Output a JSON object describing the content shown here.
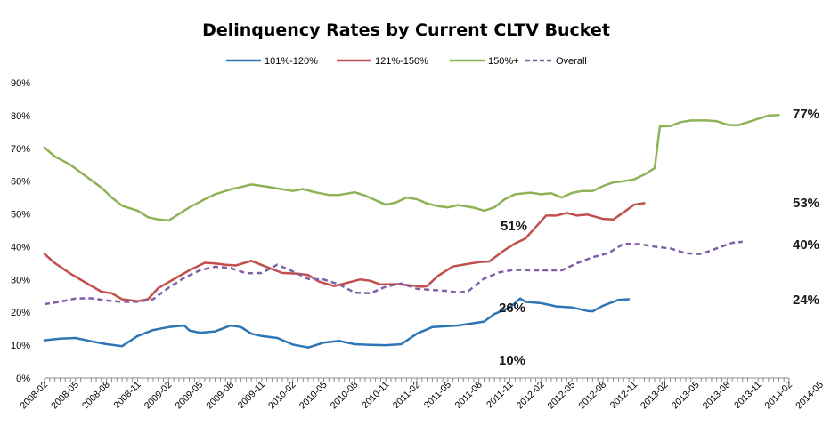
{
  "chart_data": {
    "type": "line",
    "title": "Delinquency Rates by Current CLTV Bucket",
    "xlabel": "",
    "ylabel": "",
    "ylim": [
      0,
      90
    ],
    "yticks": [
      0,
      10,
      20,
      30,
      40,
      50,
      60,
      70,
      80,
      90
    ],
    "ytick_labels": [
      "0%",
      "10%",
      "20%",
      "30%",
      "40%",
      "50%",
      "60%",
      "70%",
      "80%",
      "90%"
    ],
    "x_tick_labels": [
      "2008-02",
      "2008-05",
      "2008-08",
      "2008-11",
      "2009-02",
      "2009-05",
      "2009-08",
      "2009-11",
      "2010-02",
      "2010-05",
      "2010-08",
      "2010-11",
      "2011-02",
      "2011-05",
      "2011-08",
      "2011-11",
      "2012-02",
      "2012-05",
      "2012-08",
      "2012-11",
      "2013-02",
      "2013-05",
      "2013-08",
      "2013-11",
      "2014-02",
      "2014-05"
    ],
    "x_range": [
      "2008-02",
      "2014-07"
    ],
    "grid": false,
    "legend_position": "top",
    "series": [
      {
        "name": "101%-120%",
        "color": "#2e75b6",
        "style": "solid",
        "points": [
          [
            0,
            11.5
          ],
          [
            3,
            12
          ],
          [
            6,
            12.2
          ],
          [
            9,
            11.2
          ],
          [
            12,
            10.3
          ],
          [
            15,
            9.7
          ],
          [
            18,
            12.8
          ],
          [
            21,
            14.6
          ],
          [
            24,
            15.5
          ],
          [
            27,
            16
          ],
          [
            28,
            14.5
          ],
          [
            30,
            13.8
          ],
          [
            33,
            14.2
          ],
          [
            36,
            16
          ],
          [
            38,
            15.5
          ],
          [
            40,
            13.5
          ],
          [
            42,
            12.8
          ],
          [
            45,
            12.2
          ],
          [
            48,
            10.2
          ],
          [
            51,
            9.3
          ],
          [
            54,
            10.8
          ],
          [
            57,
            11.3
          ],
          [
            60,
            10.3
          ],
          [
            63,
            10.1
          ],
          [
            66,
            10
          ],
          [
            69,
            10.3
          ],
          [
            72,
            13.5
          ],
          [
            75,
            15.5
          ],
          [
            78,
            15.8
          ],
          [
            80,
            16
          ],
          [
            83,
            16.7
          ],
          [
            85,
            17.2
          ],
          [
            87,
            19.5
          ],
          [
            90,
            21.5
          ],
          [
            92,
            24.2
          ],
          [
            93,
            23.2
          ],
          [
            96,
            22.8
          ],
          [
            99,
            21.8
          ],
          [
            102,
            21.5
          ],
          [
            105,
            20.4
          ],
          [
            106,
            20.3
          ],
          [
            108,
            22
          ],
          [
            111,
            23.8
          ],
          [
            113,
            24
          ]
        ]
      },
      {
        "name": "121%-150%",
        "color": "#c0504d",
        "style": "solid",
        "points": [
          [
            0,
            37.8
          ],
          [
            2,
            35
          ],
          [
            5,
            31.8
          ],
          [
            8,
            29
          ],
          [
            11,
            26.3
          ],
          [
            13,
            25.8
          ],
          [
            15,
            24
          ],
          [
            18,
            23.4
          ],
          [
            20,
            24
          ],
          [
            22,
            27.4
          ],
          [
            25,
            30.1
          ],
          [
            28,
            32.8
          ],
          [
            31,
            35.1
          ],
          [
            33,
            34.9
          ],
          [
            35,
            34.5
          ],
          [
            37,
            34.3
          ],
          [
            40,
            35.7
          ],
          [
            43,
            33.8
          ],
          [
            46,
            32
          ],
          [
            49,
            31.8
          ],
          [
            51,
            31.4
          ],
          [
            53,
            29.4
          ],
          [
            56,
            28
          ],
          [
            58,
            28.8
          ],
          [
            61,
            30
          ],
          [
            63,
            29.6
          ],
          [
            65,
            28.5
          ],
          [
            68,
            28.6
          ],
          [
            71,
            28.2
          ],
          [
            73,
            27.8
          ],
          [
            74,
            28
          ],
          [
            76,
            31
          ],
          [
            79,
            34
          ],
          [
            82,
            34.8
          ],
          [
            84,
            35.3
          ],
          [
            86,
            35.5
          ],
          [
            89,
            39
          ],
          [
            91,
            41
          ],
          [
            93,
            42.5
          ],
          [
            95,
            46
          ],
          [
            97,
            49.5
          ],
          [
            99,
            49.5
          ],
          [
            101,
            50.3
          ],
          [
            103,
            49.5
          ],
          [
            105,
            49.8
          ],
          [
            108,
            48.5
          ],
          [
            110,
            48.3
          ],
          [
            112,
            50.5
          ],
          [
            114,
            52.8
          ],
          [
            116,
            53.3
          ]
        ]
      },
      {
        "name": "150%+",
        "color": "#8db356",
        "style": "solid",
        "points": [
          [
            0,
            70.2
          ],
          [
            2,
            67.5
          ],
          [
            5,
            65
          ],
          [
            8,
            61.5
          ],
          [
            11,
            58
          ],
          [
            13,
            55
          ],
          [
            15,
            52.5
          ],
          [
            18,
            51
          ],
          [
            20,
            49
          ],
          [
            22,
            48.3
          ],
          [
            24,
            48
          ],
          [
            26,
            50
          ],
          [
            28,
            52
          ],
          [
            31,
            54.5
          ],
          [
            33,
            56
          ],
          [
            36,
            57.5
          ],
          [
            38,
            58.2
          ],
          [
            40,
            59
          ],
          [
            43,
            58.3
          ],
          [
            46,
            57.5
          ],
          [
            48,
            57
          ],
          [
            50,
            57.6
          ],
          [
            52,
            56.7
          ],
          [
            55,
            55.8
          ],
          [
            57,
            55.8
          ],
          [
            60,
            56.6
          ],
          [
            62,
            55.6
          ],
          [
            64,
            54.2
          ],
          [
            66,
            52.8
          ],
          [
            68,
            53.5
          ],
          [
            70,
            55
          ],
          [
            72,
            54.5
          ],
          [
            74,
            53.2
          ],
          [
            76,
            52.4
          ],
          [
            78,
            52
          ],
          [
            80,
            52.7
          ],
          [
            83,
            51.9
          ],
          [
            85,
            51
          ],
          [
            87,
            52
          ],
          [
            89,
            54.5
          ],
          [
            91,
            56
          ],
          [
            94,
            56.5
          ],
          [
            96,
            56
          ],
          [
            98,
            56.3
          ],
          [
            100,
            55
          ],
          [
            102,
            56.4
          ],
          [
            104,
            57
          ],
          [
            106,
            57
          ],
          [
            108,
            58.5
          ],
          [
            110,
            59.6
          ],
          [
            112,
            60
          ],
          [
            114,
            60.5
          ],
          [
            116,
            62
          ],
          [
            118,
            64
          ],
          [
            119,
            76.7
          ],
          [
            121,
            76.8
          ],
          [
            123,
            78
          ],
          [
            125,
            78.5
          ],
          [
            128,
            78.5
          ],
          [
            130,
            78.3
          ],
          [
            132,
            77.2
          ],
          [
            134,
            77
          ],
          [
            136,
            78
          ],
          [
            138,
            79
          ],
          [
            140,
            80
          ],
          [
            142,
            80.2
          ]
        ]
      },
      {
        "name": "Overall",
        "color": "#7f60a8",
        "style": "dashed",
        "points": [
          [
            0,
            22.5
          ],
          [
            3,
            23.2
          ],
          [
            6,
            24.2
          ],
          [
            9,
            24.3
          ],
          [
            12,
            23.6
          ],
          [
            15,
            23.2
          ],
          [
            18,
            23.2
          ],
          [
            21,
            24
          ],
          [
            24,
            27.5
          ],
          [
            27,
            30.5
          ],
          [
            30,
            32.8
          ],
          [
            33,
            33.9
          ],
          [
            36,
            33.5
          ],
          [
            39,
            31.9
          ],
          [
            42,
            32
          ],
          [
            45,
            34.5
          ],
          [
            48,
            32.5
          ],
          [
            51,
            30.2
          ],
          [
            54,
            30
          ],
          [
            57,
            28.5
          ],
          [
            60,
            26
          ],
          [
            63,
            25.8
          ],
          [
            66,
            27.8
          ],
          [
            69,
            28.8
          ],
          [
            72,
            27.2
          ],
          [
            75,
            26.8
          ],
          [
            78,
            26.5
          ],
          [
            80,
            26
          ],
          [
            82,
            26.5
          ],
          [
            85,
            30.3
          ],
          [
            88,
            32.2
          ],
          [
            91,
            33
          ],
          [
            94,
            32.8
          ],
          [
            97,
            32.8
          ],
          [
            100,
            32.8
          ],
          [
            103,
            35
          ],
          [
            106,
            36.8
          ],
          [
            109,
            38
          ],
          [
            112,
            40.9
          ],
          [
            115,
            40.8
          ],
          [
            118,
            40
          ],
          [
            121,
            39.5
          ],
          [
            124,
            38
          ],
          [
            127,
            37.8
          ],
          [
            130,
            39.5
          ],
          [
            133,
            41.2
          ],
          [
            135,
            41.5
          ]
        ]
      }
    ],
    "annotations": [
      {
        "text": "77%",
        "series": "150%+"
      },
      {
        "text": "53%",
        "series": "121%-150%"
      },
      {
        "text": "40%",
        "series": "Overall"
      },
      {
        "text": "24%",
        "series": "101%-120%"
      },
      {
        "text": "51%",
        "series": "150%+"
      },
      {
        "text": "26%",
        "series": "Overall"
      },
      {
        "text": "10%",
        "series": "101%-120%"
      }
    ]
  }
}
